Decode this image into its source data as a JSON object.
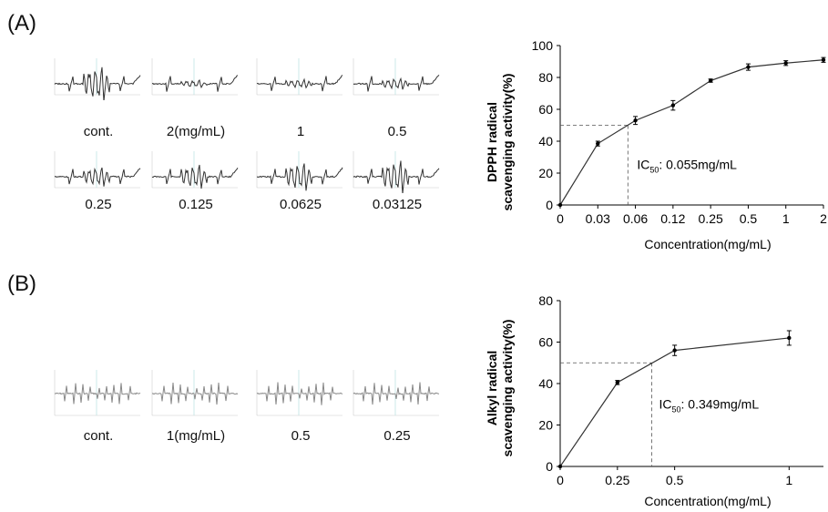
{
  "panel_a": {
    "letter": "(A)",
    "epr_labels": [
      "cont.",
      "2(mg/mL)",
      "1",
      "0.5",
      "0.25",
      "0.125",
      "0.0625",
      "0.03125"
    ]
  },
  "panel_b": {
    "letter": "(B)",
    "epr_labels": [
      "cont.",
      "1(mg/mL)",
      "0.5",
      "0.25"
    ]
  },
  "chart_data": [
    {
      "type": "line",
      "ylabel": "DPPH radical scavenging activity(%)",
      "ylabel_lines": [
        "DPPH radical",
        "scavenging activity(%)"
      ],
      "xlabel": "Concentration(mg/mL)",
      "categories": [
        "0",
        "0.03",
        "0.06",
        "0.12",
        "0.25",
        "0.5",
        "1",
        "2"
      ],
      "values": [
        0,
        38.5,
        53,
        62.5,
        78,
        86.5,
        89,
        91
      ],
      "errors": [
        0,
        1.5,
        2.5,
        3,
        1,
        2,
        1.5,
        1.5
      ],
      "ylim": [
        0,
        100
      ],
      "yticks": [
        "0",
        "20",
        "40",
        "60",
        "80",
        "100"
      ],
      "ic50_pos": 1.8,
      "ic50_value": 50,
      "ic50_label": "IC",
      "ic50_sub": "50",
      "ic50_text": ": 0.055mg/mL"
    },
    {
      "type": "line",
      "ylabel": "Alkyl radical scavenging activity(%)",
      "ylabel_lines": [
        "Alkyl radical",
        "scavenging activity(%)"
      ],
      "xlabel": "Concentration(mg/mL)",
      "x": [
        0,
        0.25,
        0.5,
        1
      ],
      "xticks": [
        "0",
        "0.25",
        "0.5",
        "1"
      ],
      "values": [
        0,
        40.5,
        56,
        62
      ],
      "errors": [
        0,
        1,
        2.5,
        3.5
      ],
      "ylim": [
        0,
        80
      ],
      "xlim": [
        0,
        1.15
      ],
      "yticks": [
        "0",
        "20",
        "40",
        "60",
        "80"
      ],
      "ic50_x": 0.4,
      "ic50_value": 50,
      "ic50_label": "IC",
      "ic50_sub": "50",
      "ic50_text": ": 0.349mg/mL"
    }
  ]
}
